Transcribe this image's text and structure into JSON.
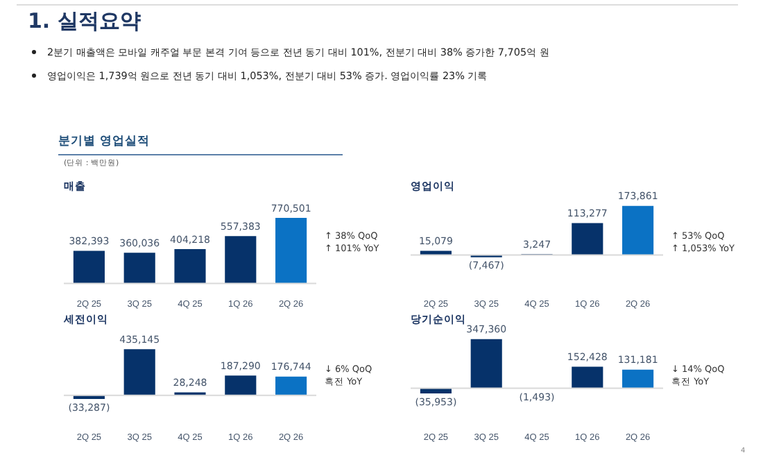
{
  "chart_data": [
    {
      "type": "other",
      "title": "1. 실적요약",
      "subtitle": "분기별 영업실적",
      "annotations": [
        "2분기 매출액은 모바일 캐주얼 부문 본격 기여 등으로 전년 동기 대비 101%, 전분기 대비 38%  증가한 7,705억 원",
        "영업이익은 1,739억 원으로 전년 동기 대비 1,053%, 전분기 대비 53% 증가. 영업이익률 23% 기록",
        "(단위 : 백만원)",
        "4"
      ]
    },
    {
      "type": "bar",
      "title": "매출",
      "categories": [
        "2Q 25",
        "3Q 25",
        "4Q 25",
        "1Q 26",
        "2Q 26"
      ],
      "values": [
        382393,
        360036,
        404218,
        557383,
        770501
      ],
      "colors": [
        "#06326a",
        "#06326a",
        "#06326a",
        "#06326a",
        "#0b72c4"
      ],
      "value_labels": [
        "382,393",
        "360,036",
        "404,218",
        "557,383",
        "770,501"
      ],
      "annotations": [
        "↑ 38% QoQ",
        "↑ 101% YoY"
      ]
    },
    {
      "type": "bar",
      "title": "영업이익",
      "categories": [
        "2Q 25",
        "3Q 25",
        "4Q 25",
        "1Q 26",
        "2Q 26"
      ],
      "values": [
        15079,
        -7467,
        3247,
        113277,
        173861
      ],
      "colors": [
        "#06326a",
        "#06326a",
        "#06326a",
        "#06326a",
        "#0b72c4"
      ],
      "value_labels": [
        "15,079",
        "(7,467)",
        "3,247",
        "113,277",
        "173,861"
      ],
      "annotations": [
        "↑ 53% QoQ",
        "↑ 1,053% YoY"
      ]
    },
    {
      "type": "bar",
      "title": "세전이익",
      "categories": [
        "2Q 25",
        "3Q 25",
        "4Q 25",
        "1Q 26",
        "2Q 26"
      ],
      "values": [
        -33287,
        435145,
        28248,
        187290,
        176744
      ],
      "colors": [
        "#06326a",
        "#06326a",
        "#06326a",
        "#06326a",
        "#0b72c4"
      ],
      "value_labels": [
        "(33,287)",
        "435,145",
        "28,248",
        "187,290",
        "176,744"
      ],
      "annotations": [
        "↓ 6% QoQ",
        "흑전 YoY"
      ]
    },
    {
      "type": "bar",
      "title": "당기순이익",
      "categories": [
        "2Q 25",
        "3Q 25",
        "4Q 25",
        "1Q 26",
        "2Q 26"
      ],
      "values": [
        -35953,
        347360,
        -1493,
        152428,
        131181
      ],
      "colors": [
        "#06326a",
        "#06326a",
        "#06326a",
        "#06326a",
        "#0b72c4"
      ],
      "value_labels": [
        "(35,953)",
        "347,360",
        "(1,493)",
        "152,428",
        "131,181"
      ],
      "annotations": [
        "↓ 14% QoQ",
        "흑전 YoY"
      ]
    }
  ]
}
